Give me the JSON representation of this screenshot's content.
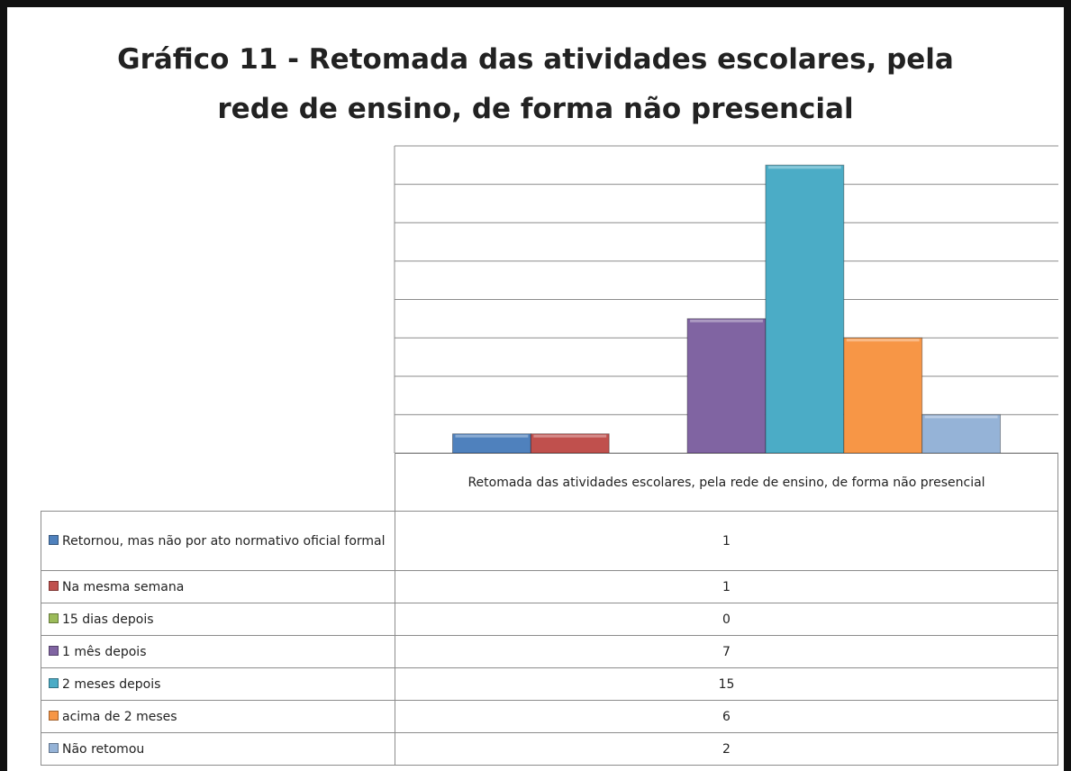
{
  "chart_data": {
    "type": "bar",
    "title": [
      "Gráfico 11 - Retomada das atividades escolares, pela",
      "rede de ensino, de forma não presencial"
    ],
    "categories": [
      "Retomada das atividades escolares, pela rede de ensino, de forma não presencial"
    ],
    "series": [
      {
        "name": "Retornou, mas não por ato normativo oficial formal",
        "color": "#4f81bd",
        "values": [
          1
        ]
      },
      {
        "name": "Na mesma semana",
        "color": "#c0504d",
        "values": [
          1
        ]
      },
      {
        "name": "15 dias depois",
        "color": "#9bbb59",
        "values": [
          0
        ]
      },
      {
        "name": "1 mês depois",
        "color": "#8064a2",
        "values": [
          7
        ]
      },
      {
        "name": "2 meses depois",
        "color": "#4bacc6",
        "values": [
          15
        ]
      },
      {
        "name": "acima de 2 meses",
        "color": "#f79646",
        "values": [
          6
        ]
      },
      {
        "name": "Não retomou",
        "color": "#95b3d7",
        "values": [
          2
        ]
      }
    ],
    "ylim": [
      0,
      16
    ],
    "yticks": [
      0,
      2,
      4,
      6,
      8,
      10,
      12,
      14,
      16
    ],
    "grid": true
  }
}
